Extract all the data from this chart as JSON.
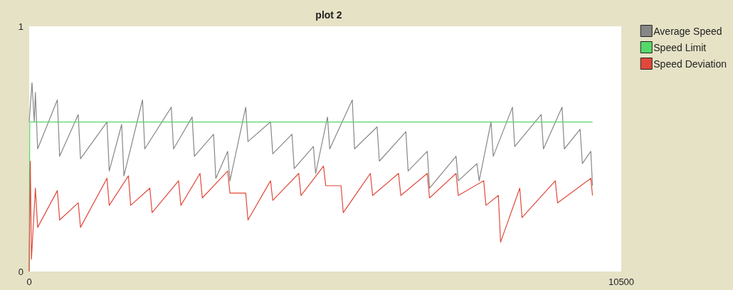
{
  "chart_data": {
    "type": "line",
    "title": "plot 2",
    "series": [
      {
        "name": "Average Speed",
        "color": "#878787",
        "x": [
          0,
          50,
          90,
          110,
          150,
          500,
          540,
          870,
          910,
          1380,
          1420,
          1640,
          1680,
          2010,
          2050,
          2520,
          2560,
          2890,
          2930,
          3270,
          3310,
          3520,
          3560,
          3840,
          3880,
          4280,
          4320,
          4660,
          4700,
          5040,
          5080,
          5290,
          5330,
          5730,
          5770,
          6170,
          6210,
          6680,
          6720,
          7060,
          7100,
          7570,
          7610,
          7940,
          7980,
          8190,
          8230,
          8570,
          8610,
          9080,
          9120,
          9450,
          9490,
          9770,
          9810,
          9960,
          9990
        ],
        "values": [
          0.61,
          0.77,
          0.61,
          0.73,
          0.5,
          0.7,
          0.47,
          0.64,
          0.46,
          0.61,
          0.41,
          0.6,
          0.39,
          0.7,
          0.5,
          0.67,
          0.5,
          0.63,
          0.47,
          0.56,
          0.38,
          0.49,
          0.37,
          0.67,
          0.53,
          0.61,
          0.48,
          0.56,
          0.42,
          0.51,
          0.4,
          0.63,
          0.5,
          0.7,
          0.5,
          0.59,
          0.45,
          0.57,
          0.41,
          0.49,
          0.34,
          0.47,
          0.37,
          0.44,
          0.37,
          0.61,
          0.47,
          0.67,
          0.51,
          0.64,
          0.5,
          0.67,
          0.5,
          0.58,
          0.44,
          0.49,
          0.35
        ]
      },
      {
        "name": "Speed Limit",
        "color": "#55d86a",
        "x": [
          0,
          10,
          9990
        ],
        "values": [
          0,
          0.61,
          0.61
        ]
      },
      {
        "name": "Speed Deviation",
        "color": "#e0483b",
        "x": [
          0,
          20,
          40,
          110,
          150,
          500,
          540,
          870,
          910,
          1380,
          1420,
          1760,
          1800,
          2140,
          2180,
          2650,
          2690,
          3030,
          3070,
          3520,
          3560,
          3840,
          3880,
          4280,
          4320,
          4780,
          4820,
          5220,
          5260,
          5530,
          5570,
          6050,
          6090,
          6550,
          6590,
          7060,
          7100,
          7570,
          7610,
          8060,
          8100,
          8320,
          8360,
          8700,
          8740,
          9330,
          9370,
          9960,
          9990
        ],
        "values": [
          0,
          0.45,
          0.05,
          0.34,
          0.18,
          0.33,
          0.21,
          0.28,
          0.18,
          0.38,
          0.27,
          0.39,
          0.27,
          0.34,
          0.24,
          0.37,
          0.27,
          0.4,
          0.3,
          0.41,
          0.32,
          0.32,
          0.21,
          0.37,
          0.29,
          0.4,
          0.31,
          0.43,
          0.35,
          0.35,
          0.24,
          0.4,
          0.31,
          0.4,
          0.31,
          0.4,
          0.3,
          0.4,
          0.31,
          0.37,
          0.27,
          0.31,
          0.12,
          0.34,
          0.22,
          0.37,
          0.28,
          0.38,
          0.31
        ]
      }
    ],
    "xlim": [
      0,
      10500
    ],
    "xticks": [
      0,
      10500
    ],
    "ylim": [
      0,
      1
    ],
    "yticks": [
      0,
      1
    ],
    "grid": false,
    "legend": "right",
    "marker": "none",
    "line_style": "solid"
  }
}
